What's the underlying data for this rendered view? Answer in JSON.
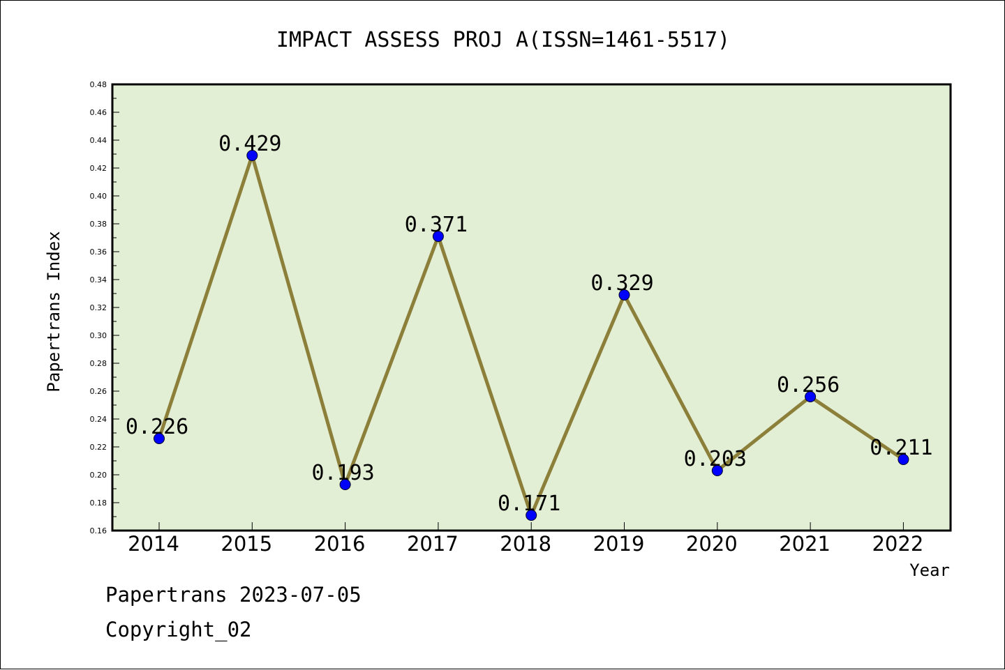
{
  "chart_data": {
    "type": "line",
    "title": "IMPACT ASSESS PROJ A(ISSN=1461-5517)",
    "xlabel": "Year",
    "ylabel": "Papertrans Index",
    "categories": [
      "2014",
      "2015",
      "2016",
      "2017",
      "2018",
      "2019",
      "2020",
      "2021",
      "2022"
    ],
    "series": [
      {
        "values": [
          0.226,
          0.429,
          0.193,
          0.371,
          0.171,
          0.329,
          0.203,
          0.256,
          0.211
        ],
        "data_labels": [
          "0.226",
          "0.429",
          "0.193",
          "0.371",
          "0.171",
          "0.329",
          "0.203",
          "0.256",
          "0.211"
        ]
      }
    ],
    "ylim": [
      0.16,
      0.48
    ],
    "yticks": [
      "0.16",
      "0.18",
      "0.20",
      "0.22",
      "0.24",
      "0.26",
      "0.28",
      "0.30",
      "0.32",
      "0.34",
      "0.36",
      "0.38",
      "0.40",
      "0.42",
      "0.44",
      "0.46",
      "0.48"
    ],
    "grid": false,
    "legend": "none",
    "colors": {
      "plot_background": "#e2efd5",
      "line": "#8c7f3a",
      "marker": "#0000ff"
    }
  },
  "footer": {
    "line1": "Papertrans 2023-07-05",
    "line2": "Copyright_02"
  }
}
